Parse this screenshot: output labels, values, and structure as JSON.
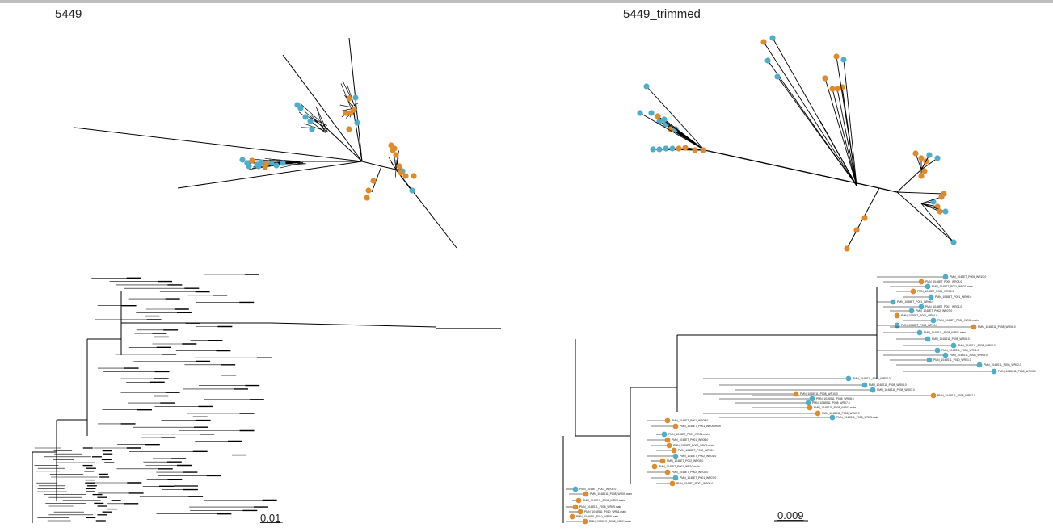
{
  "panels": {
    "left": {
      "title": "5449",
      "scale_label": "0.01"
    },
    "right": {
      "title": "5449_trimmed",
      "scale_label": "0.009"
    }
  },
  "colors": {
    "branch": "#000000",
    "tip_blue": "#4daecb",
    "tip_orange": "#e08a2a",
    "frame_bar": "#bdbdbd"
  },
  "right_tree_tip_labels": [
    "PMN_1048ET_P005_WR10.0",
    "PMN_1048ET_P005_WR08.0",
    "PMN_1048ET_P001_WR07.main",
    "PMN_1048ET_P001_WR03.0",
    "PMN_1048ET_P001_WR05.0",
    "PMN_1048ET_P001_WR06.0",
    "PMN_1048ET_P001_WR01.0",
    "PMN_1048ET_P002_WR07.0",
    "PMN_1048ET_P001_WR01.0",
    "PMN_1048ET_P002_WR02.main",
    "PMN_1048ET_P003_WR10.0",
    "PMN_1048S11_P008_WR01.main",
    "PMN_1048S11_P008_WR06.0",
    "PMN_1048S11_P008_WR06.0",
    "PMN_1048S11_P008_WR02.0",
    "PMN_1048S11_P008_WR11.0",
    "PMN_1048S11_P008_WR08.0",
    "PMN_1048S11_P010_WR01.0",
    "PMN_1048S11_P008_WR02.0",
    "PMN_1048S11_P008_WR06.0",
    "PMN_1048S11_P008_WR07.0",
    "PMN_1048S11_P008_WR05.0",
    "PMN_1048S11_P008_WR01.0",
    "PMN_1048S11_P008_WR07.0",
    "PMN_1048S11_P008_WR10.0",
    "PMN_1048S11_P008_WR08.0",
    "PMN_1048S11_P008_WR07.0",
    "PMN_1048S11_P008_WR03.main",
    "PMN_1048S11_P008_WR07.0",
    "PMN_1048S11_P008_WR03.main",
    "PMN_1048ET_P001_WR08.0",
    "PMN_1048ET_P001_WR09.main",
    "PMN_1048ET_P001_WR01.main",
    "PMN_1048ET_P001_WR05.0",
    "PMN_1048ET_P002_WR06.main",
    "PMN_1048ET_P002_WR05.0",
    "PMN_1048ET_P002_WR01.0",
    "PMN_1048ET_P002_WR03.0",
    "PMN_1048ET_P001_WR10.main",
    "PMN_1048ET_P002_WR02.0",
    "PMN_1048ET_P001_WR07.0",
    "PMN_1048ET_P002_WR06.0",
    "PMN_1048ET_P003_WR05.0",
    "PMN_1048S11_P008_WR05.main",
    "PMN_1048S11_P008_WR04.main",
    "PMN_1048S11_P008_WR09.main",
    "PMN_1048S11_P010_WR11.main",
    "PMN_1048S11_P010_WR08.main",
    "PMN_1048S11_P008_WR01.main"
  ]
}
